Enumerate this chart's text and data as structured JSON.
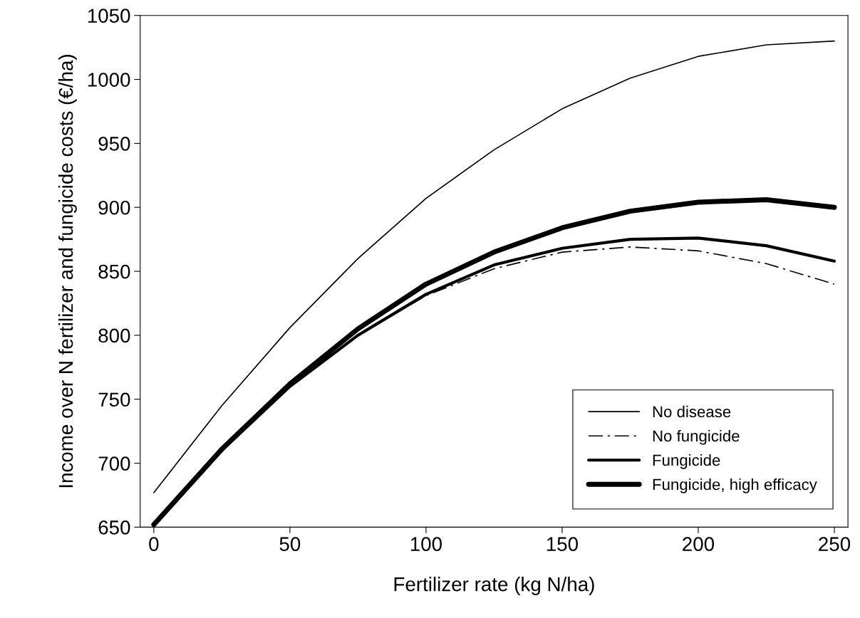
{
  "chart_data": {
    "type": "line",
    "xlabel": "Fertilizer rate (kg N/ha)",
    "ylabel": "Income over N fertilizer and fungicide costs (€/ha)",
    "x": [
      0,
      25,
      50,
      75,
      100,
      125,
      150,
      175,
      200,
      225,
      250
    ],
    "series": [
      {
        "name": "No disease",
        "color": "#000000",
        "line_style": "solid",
        "values": [
          677,
          745,
          806,
          860,
          907,
          945,
          977,
          1001,
          1018,
          1027,
          1030
        ]
      },
      {
        "name": "No fungicide",
        "color": "#000000",
        "line_style": "dashed",
        "values": [
          652,
          710,
          760,
          800,
          831,
          852,
          865,
          869,
          866,
          856,
          840
        ]
      },
      {
        "name": "Fungicide",
        "color": "#000000",
        "line_style": "solid",
        "values": [
          652,
          710,
          760,
          800,
          832,
          855,
          868,
          875,
          876,
          870,
          858
        ]
      },
      {
        "name": "Fungicide, high efficacy",
        "color": "#000000",
        "line_style": "solid",
        "values": [
          652,
          711,
          762,
          805,
          840,
          865,
          884,
          897,
          904,
          906,
          900
        ]
      }
    ],
    "xlim": [
      -5,
      255
    ],
    "ylim": [
      650,
      1050
    ],
    "xticks": [
      0,
      50,
      100,
      150,
      200,
      250
    ],
    "yticks": [
      650,
      700,
      750,
      800,
      850,
      900,
      950,
      1000,
      1050
    ],
    "legend": "bottom right",
    "grid": false,
    "marker": "none"
  }
}
